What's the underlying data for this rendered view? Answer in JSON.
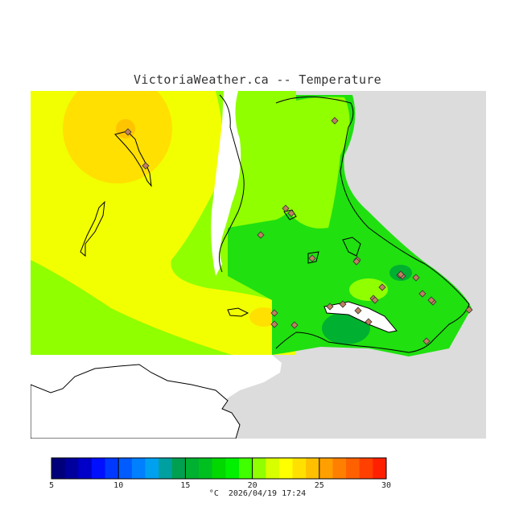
{
  "title": "VictoriaWeather.ca -- Temperature",
  "legend": {
    "min": 5,
    "max": 30,
    "step": 1,
    "tick_labels": [
      "5",
      "10",
      "15",
      "20",
      "25",
      "30"
    ],
    "colors": [
      "#00007a",
      "#00009c",
      "#0000c8",
      "#0010ff",
      "#0038ff",
      "#005cff",
      "#0080ff",
      "#00a0f0",
      "#00a0a0",
      "#00a050",
      "#00b030",
      "#00c020",
      "#00d800",
      "#00f000",
      "#40ff00",
      "#90ff00",
      "#d8ff00",
      "#ffff00",
      "#ffe000",
      "#ffc000",
      "#ffa000",
      "#ff8000",
      "#ff6000",
      "#ff4000",
      "#ff2000"
    ],
    "unit": "°C"
  },
  "timestamp": "2026/04/19 17:24",
  "map": {
    "land_color": "#dcdcdc",
    "water_color": "#ffffff",
    "station_marker": "diamond",
    "station_count": 28
  }
}
